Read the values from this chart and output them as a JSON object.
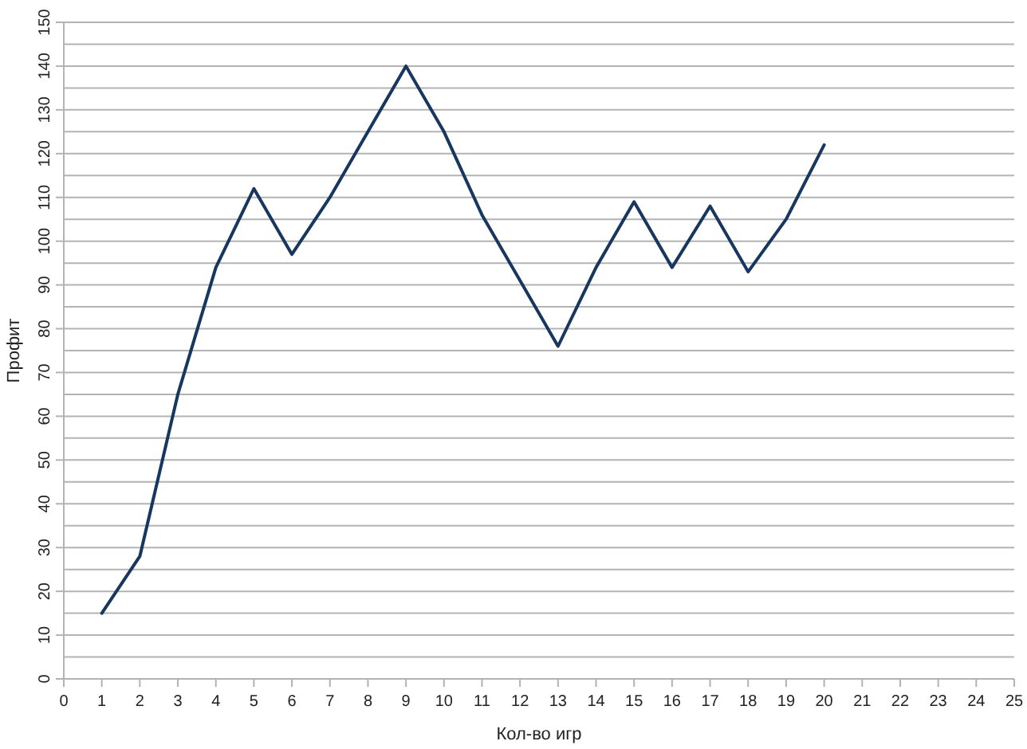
{
  "chart_data": {
    "type": "line",
    "xlabel": "Кол-во игр",
    "ylabel": "Профит",
    "x": [
      1,
      2,
      3,
      4,
      5,
      6,
      7,
      8,
      9,
      10,
      11,
      12,
      13,
      14,
      15,
      16,
      17,
      18,
      19,
      20
    ],
    "series": [
      {
        "color": "#17375e",
        "values": [
          15,
          28,
          65,
          94,
          112,
          97,
          110,
          125,
          140,
          125,
          106,
          91,
          76,
          94,
          109,
          94,
          108,
          93,
          105,
          122
        ]
      }
    ],
    "xlim": [
      0,
      25
    ],
    "xticks": [
      0,
      1,
      2,
      3,
      4,
      5,
      6,
      7,
      8,
      9,
      10,
      11,
      12,
      13,
      14,
      15,
      16,
      17,
      18,
      19,
      20,
      21,
      22,
      23,
      24,
      25
    ],
    "ylim": [
      0,
      150
    ],
    "yticks": [
      0,
      10,
      20,
      30,
      40,
      50,
      60,
      70,
      80,
      90,
      100,
      110,
      120,
      130,
      140,
      150
    ],
    "grid": "y",
    "marker": "none",
    "line_style": "solid"
  }
}
